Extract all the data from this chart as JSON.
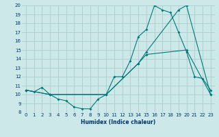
{
  "xlabel": "Humidex (Indice chaleur)",
  "xlim": [
    -0.5,
    23.5
  ],
  "ylim": [
    8,
    20
  ],
  "yticks": [
    8,
    9,
    10,
    11,
    12,
    13,
    14,
    15,
    16,
    17,
    18,
    19,
    20
  ],
  "xticks": [
    0,
    1,
    2,
    3,
    4,
    5,
    6,
    7,
    8,
    9,
    10,
    11,
    12,
    13,
    14,
    15,
    16,
    17,
    18,
    19,
    20,
    21,
    22,
    23
  ],
  "bg_color": "#cce8e8",
  "line_color": "#007878",
  "grid_color": "#aacccc",
  "line1_x": [
    0,
    1,
    2,
    3,
    4,
    5,
    6,
    7,
    8,
    9,
    10,
    11,
    12,
    13,
    14,
    15,
    16,
    17,
    18,
    19,
    20,
    21,
    22,
    23
  ],
  "line1_y": [
    10.5,
    10.3,
    10.8,
    10.0,
    9.5,
    9.3,
    8.6,
    8.4,
    8.4,
    9.5,
    10.0,
    12.0,
    12.0,
    13.8,
    16.5,
    17.3,
    20.0,
    19.5,
    19.2,
    17.0,
    14.8,
    12.0,
    11.8,
    10.5
  ],
  "line2_x": [
    0,
    3,
    10,
    14,
    15,
    20,
    23
  ],
  "line2_y": [
    10.5,
    10.0,
    10.0,
    13.5,
    14.5,
    15.0,
    10.0
  ],
  "line3_x": [
    0,
    3,
    10,
    14,
    15,
    19,
    20,
    23
  ],
  "line3_y": [
    10.5,
    10.0,
    10.0,
    13.5,
    14.8,
    19.5,
    20.0,
    10.0
  ]
}
